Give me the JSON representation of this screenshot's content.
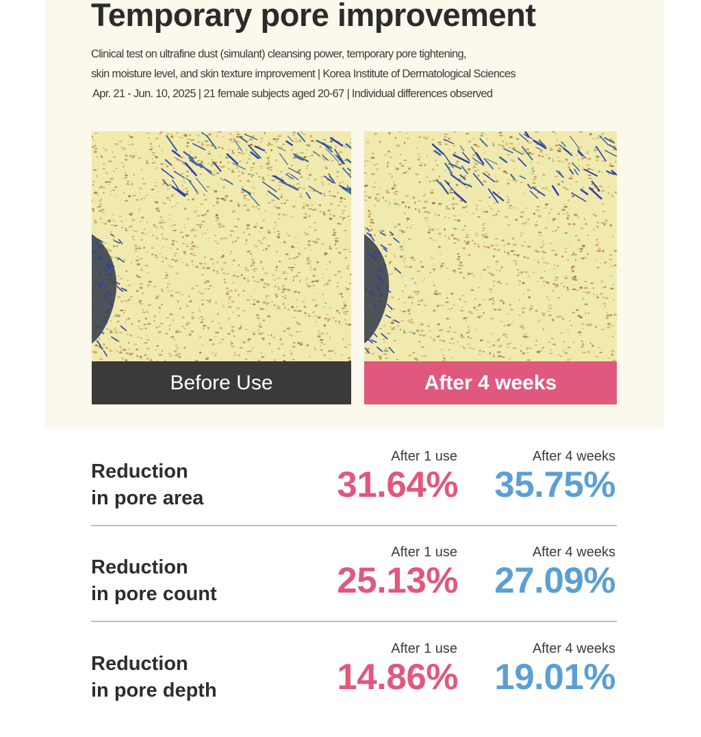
{
  "header": {
    "title": "Temporary pore improvement",
    "subtitle_lines": [
      "Clinical test on ultrafine dust (simulant) cleansing power, temporary pore tightening,",
      "skin moisture level, and skin texture improvement  |  Korea Institute of Dermatological Sciences",
      "Apr. 21 - Jun. 10, 2025  |  21 female subjects aged 20-67  |  Individual differences observed"
    ]
  },
  "comparison": {
    "before_label": "Before Use",
    "after_label": "After 4 weeks",
    "colors": {
      "before_bar": "#3a3a3a",
      "after_bar": "#e0587e"
    }
  },
  "metrics": [
    {
      "label_line1": "Reduction",
      "label_line2": "in pore area",
      "col1_head": "After 1 use",
      "col1_value": "31.64%",
      "col2_head": "After 4 weeks",
      "col2_value": "35.75%"
    },
    {
      "label_line1": "Reduction",
      "label_line2": "in pore count",
      "col1_head": "After 1 use",
      "col1_value": "25.13%",
      "col2_head": "After 4 weeks",
      "col2_value": "27.09%"
    },
    {
      "label_line1": "Reduction",
      "label_line2": "in pore depth",
      "col1_head": "After 1 use",
      "col1_value": "14.86%",
      "col2_head": "After 4 weeks",
      "col2_value": "19.01%"
    }
  ],
  "colors": {
    "accent_pink": "#e0587e",
    "accent_blue": "#5b9fd4",
    "panel_bg": "#fbf8ec"
  }
}
